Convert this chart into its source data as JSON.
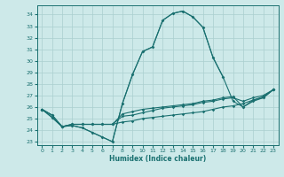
{
  "xlabel": "Humidex (Indice chaleur)",
  "bg_color": "#cde9e9",
  "grid_color": "#aacfcf",
  "line_color": "#1a7070",
  "xlim": [
    -0.5,
    23.5
  ],
  "ylim": [
    22.7,
    34.8
  ],
  "yticks": [
    23,
    24,
    25,
    26,
    27,
    28,
    29,
    30,
    31,
    32,
    33,
    34
  ],
  "xticks": [
    0,
    1,
    2,
    3,
    4,
    5,
    6,
    7,
    8,
    9,
    10,
    11,
    12,
    13,
    14,
    15,
    16,
    17,
    18,
    19,
    20,
    21,
    22,
    23
  ],
  "lines": [
    [
      25.8,
      25.1,
      24.3,
      24.4,
      24.2,
      23.8,
      23.4,
      23.0,
      26.3,
      28.8,
      30.8,
      31.2,
      33.5,
      34.1,
      34.3,
      33.8,
      32.9,
      30.3,
      28.6,
      null,
      null,
      null,
      null,
      null
    ],
    [
      25.8,
      25.1,
      24.3,
      24.4,
      24.2,
      23.8,
      23.4,
      23.0,
      26.3,
      28.8,
      30.8,
      31.2,
      33.5,
      34.1,
      34.3,
      33.8,
      32.9,
      30.3,
      28.6,
      26.5,
      26.0,
      26.5,
      26.8,
      27.5
    ],
    [
      25.8,
      25.3,
      24.3,
      24.5,
      24.5,
      24.5,
      24.5,
      24.5,
      24.7,
      24.8,
      25.0,
      25.1,
      25.2,
      25.3,
      25.4,
      25.5,
      25.6,
      25.8,
      26.0,
      26.1,
      26.3,
      26.6,
      26.8,
      27.5
    ],
    [
      25.8,
      25.3,
      24.3,
      24.5,
      24.5,
      24.5,
      24.5,
      24.5,
      25.2,
      25.3,
      25.5,
      25.7,
      25.9,
      26.0,
      26.1,
      26.2,
      26.4,
      26.5,
      26.7,
      26.8,
      26.5,
      26.8,
      27.0,
      27.5
    ],
    [
      25.8,
      25.3,
      24.3,
      24.5,
      24.5,
      24.5,
      24.5,
      24.5,
      25.4,
      25.6,
      25.8,
      25.9,
      26.0,
      26.1,
      26.2,
      26.3,
      26.5,
      26.6,
      26.8,
      26.9,
      26.0,
      26.6,
      26.9,
      27.5
    ]
  ]
}
